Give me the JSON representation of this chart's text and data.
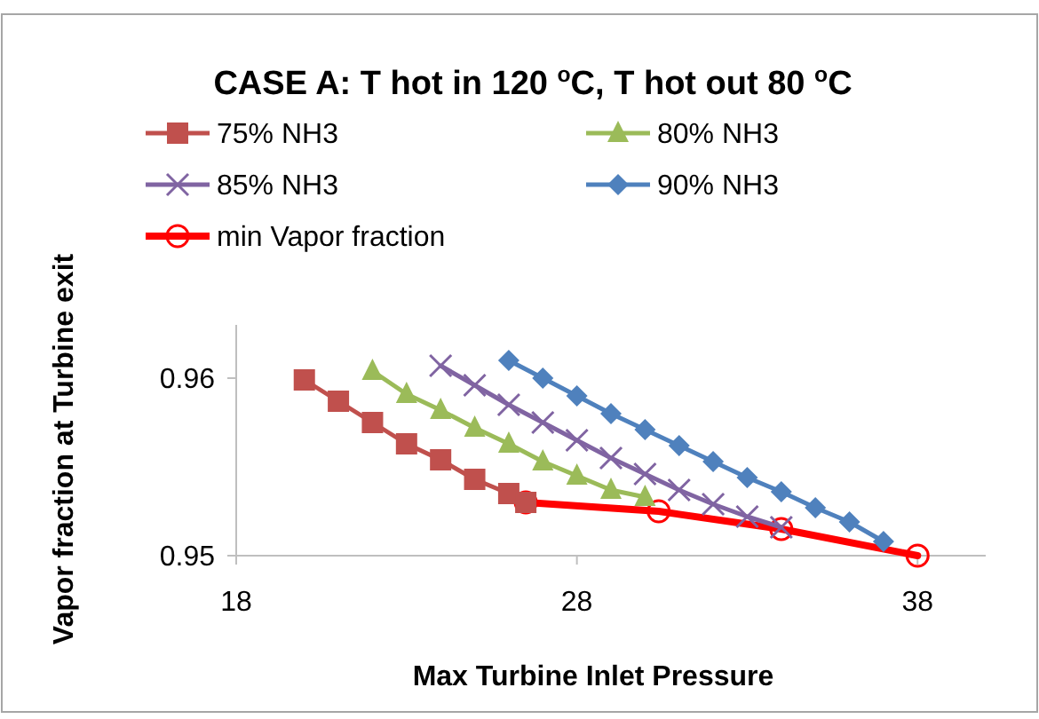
{
  "chart_data": {
    "type": "line",
    "title": "CASE A: T hot in 120 $^{o}$C, T hot out 80 $^{o}$C",
    "xlabel": "Max Turbine  Inlet Pressure",
    "ylabel": "Vapor fraction at Turbine exit",
    "xlim": [
      18,
      40
    ],
    "xticks": [
      18,
      28,
      38
    ],
    "ylim": [
      0.95,
      0.963
    ],
    "yticks": [
      0.95,
      0.96
    ],
    "grid": false,
    "legend": "top",
    "series": [
      {
        "name": "75% NH3",
        "color": "#c0504d",
        "marker": "square",
        "x": [
          20,
          21,
          22,
          23,
          24,
          25,
          26,
          26.5
        ],
        "values": [
          0.9599,
          0.9587,
          0.9575,
          0.9563,
          0.9554,
          0.9543,
          0.9535,
          0.953
        ]
      },
      {
        "name": "80% NH3",
        "color": "#9bbb59",
        "marker": "triangle",
        "x": [
          22,
          23,
          24,
          25,
          26,
          27,
          28,
          29,
          30
        ],
        "values": [
          0.9604,
          0.9591,
          0.9582,
          0.9572,
          0.9563,
          0.9553,
          0.9545,
          0.9537,
          0.9533
        ]
      },
      {
        "name": "85% NH3",
        "color": "#8064a2",
        "marker": "cross",
        "x": [
          24,
          25,
          26,
          27,
          28,
          29,
          30,
          31,
          32,
          33,
          34
        ],
        "values": [
          0.9607,
          0.9596,
          0.9585,
          0.9575,
          0.9565,
          0.9555,
          0.9546,
          0.9537,
          0.9529,
          0.9522,
          0.9516
        ]
      },
      {
        "name": "90% NH3",
        "color": "#4f81bd",
        "marker": "diamond",
        "x": [
          26,
          27,
          28,
          29,
          30,
          31,
          32,
          33,
          34,
          35,
          36,
          37
        ],
        "values": [
          0.961,
          0.96,
          0.959,
          0.958,
          0.9571,
          0.9562,
          0.9553,
          0.9544,
          0.9536,
          0.9527,
          0.9519,
          0.9508
        ]
      },
      {
        "name": "min Vapor fraction",
        "color": "#ff0000",
        "marker": "circle",
        "x": [
          26.5,
          30.4,
          34,
          38
        ],
        "values": [
          0.953,
          0.9525,
          0.9515,
          0.95
        ]
      }
    ]
  }
}
